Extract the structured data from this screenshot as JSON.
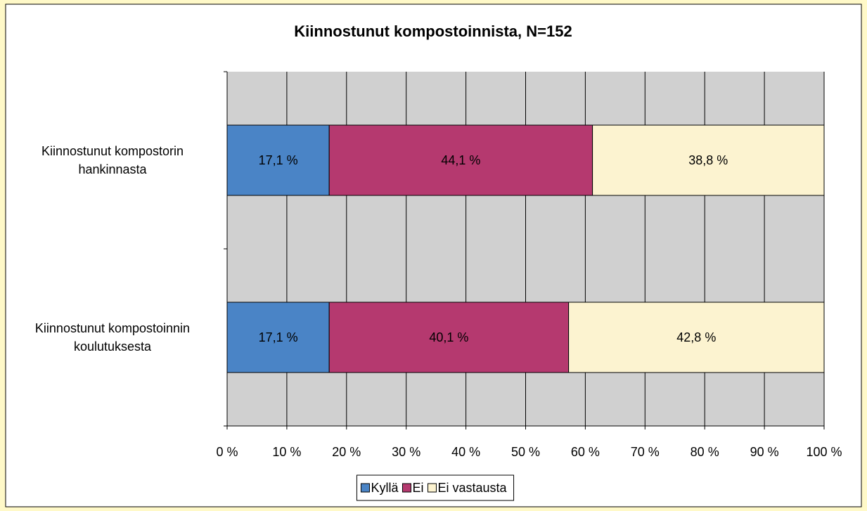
{
  "chart_data": {
    "type": "stacked_bar_horizontal",
    "title": "Kiinnostunut kompostoinnista, N=152",
    "categories": [
      "Kiinnostunut kompostorin hankinnasta",
      "Kiinnostunut kompostoinnin koulutuksesta"
    ],
    "series": [
      {
        "name": "Kyllä",
        "color": "#4a84c6",
        "values": [
          17.1,
          17.1
        ],
        "value_labels": [
          "17,1 %",
          "17,1 %"
        ]
      },
      {
        "name": "Ei",
        "color": "#b5396f",
        "values": [
          44.1,
          40.1
        ],
        "value_labels": [
          "44,1 %",
          "40,1 %"
        ]
      },
      {
        "name": "Ei vastausta",
        "color": "#fcf3d0",
        "values": [
          38.8,
          42.8
        ],
        "value_labels": [
          "38,8 %",
          "42,8 %"
        ]
      }
    ],
    "xlim": [
      0,
      100
    ],
    "xticks": [
      {
        "value": 0,
        "label": "0 %"
      },
      {
        "value": 10,
        "label": "10 %"
      },
      {
        "value": 20,
        "label": "20 %"
      },
      {
        "value": 30,
        "label": "30 %"
      },
      {
        "value": 40,
        "label": "40 %"
      },
      {
        "value": 50,
        "label": "50 %"
      },
      {
        "value": 60,
        "label": "60 %"
      },
      {
        "value": 70,
        "label": "70 %"
      },
      {
        "value": 80,
        "label": "80 %"
      },
      {
        "value": 90,
        "label": "90 %"
      },
      {
        "value": 100,
        "label": "100 %"
      }
    ],
    "grid": true,
    "legend": "bottom"
  }
}
